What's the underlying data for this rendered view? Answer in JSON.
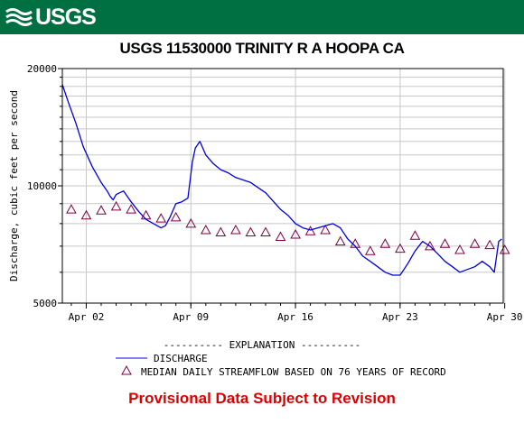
{
  "header": {
    "logo_text": "USGS",
    "logo_icon": "usgs-wave-icon",
    "banner_color": "#006f41"
  },
  "footer": {
    "provisional": "Provisional Data Subject to Revision",
    "provisional_color": "#dd0000"
  },
  "chart_data": {
    "type": "line",
    "title": "USGS 11530000 TRINITY R A HOOPA CA",
    "ylabel": "Discharge, cubic feet per second",
    "xlabel": "",
    "y_scale": "log",
    "ylim": [
      5000,
      20000
    ],
    "y_ticks": [
      {
        "value": 5000,
        "label": "5000"
      },
      {
        "value": 10000,
        "label": "10000"
      },
      {
        "value": 20000,
        "label": "20000"
      }
    ],
    "xlim": [
      -0.6,
      28.9
    ],
    "x_ticks": [
      {
        "value": 1,
        "label": "Apr 02"
      },
      {
        "value": 8,
        "label": "Apr 09"
      },
      {
        "value": 15,
        "label": "Apr 16"
      },
      {
        "value": 22,
        "label": "Apr 23"
      },
      {
        "value": 29,
        "label": "Apr 30"
      }
    ],
    "grid": true,
    "legend": {
      "header": "---------- EXPLANATION ----------",
      "position": "bottom"
    },
    "series": [
      {
        "name": "DISCHARGE",
        "style": "line",
        "color": "#0000dd",
        "x": [
          -0.6,
          -0.2,
          0.3,
          0.8,
          1.4,
          2.0,
          2.4,
          2.6,
          2.8,
          3.0,
          3.5,
          4.0,
          4.5,
          5.0,
          5.5,
          6.0,
          6.3,
          6.6,
          7.0,
          7.4,
          7.8,
          8.1,
          8.3,
          8.6,
          9.0,
          9.5,
          10.0,
          10.5,
          11.0,
          12.0,
          13.0,
          14.0,
          14.5,
          15.0,
          15.5,
          16.0,
          16.5,
          17.0,
          17.5,
          18.0,
          18.5,
          19.0,
          19.5,
          20.0,
          20.5,
          21.0,
          21.5,
          22.0,
          22.5,
          23.0,
          23.5,
          24.0,
          24.5,
          25.0,
          25.5,
          26.0,
          26.5,
          27.0,
          27.5,
          28.0,
          28.3,
          28.6,
          28.8
        ],
        "y": [
          18200,
          16400,
          14500,
          12600,
          11200,
          10200,
          9700,
          9400,
          9200,
          9500,
          9700,
          9100,
          8600,
          8200,
          8000,
          7800,
          7900,
          8300,
          9000,
          9100,
          9300,
          11500,
          12500,
          13000,
          12000,
          11400,
          11000,
          10800,
          10500,
          10200,
          9600,
          8700,
          8400,
          8000,
          7800,
          7700,
          7800,
          7900,
          8000,
          7800,
          7300,
          7000,
          6600,
          6400,
          6200,
          6000,
          5900,
          5900,
          6300,
          6800,
          7200,
          7000,
          6700,
          6400,
          6200,
          6000,
          6100,
          6200,
          6400,
          6200,
          6000,
          7200,
          7300
        ]
      },
      {
        "name": "MEDIAN DAILY STREAMFLOW BASED ON 76 YEARS OF RECORD",
        "style": "triangle",
        "color": "#800040",
        "x": [
          0,
          1,
          2,
          3,
          4,
          5,
          6,
          7,
          8,
          9,
          10,
          11,
          12,
          13,
          14,
          15,
          16,
          17,
          18,
          19,
          20,
          21,
          22,
          23,
          24,
          25,
          26,
          27,
          28,
          29
        ],
        "y": [
          8700,
          8400,
          8650,
          8850,
          8700,
          8400,
          8250,
          8300,
          8000,
          7700,
          7600,
          7700,
          7600,
          7600,
          7400,
          7500,
          7650,
          7700,
          7200,
          7100,
          6800,
          7100,
          6900,
          7450,
          7000,
          7100,
          6850,
          7100,
          7050,
          6850
        ]
      }
    ]
  }
}
